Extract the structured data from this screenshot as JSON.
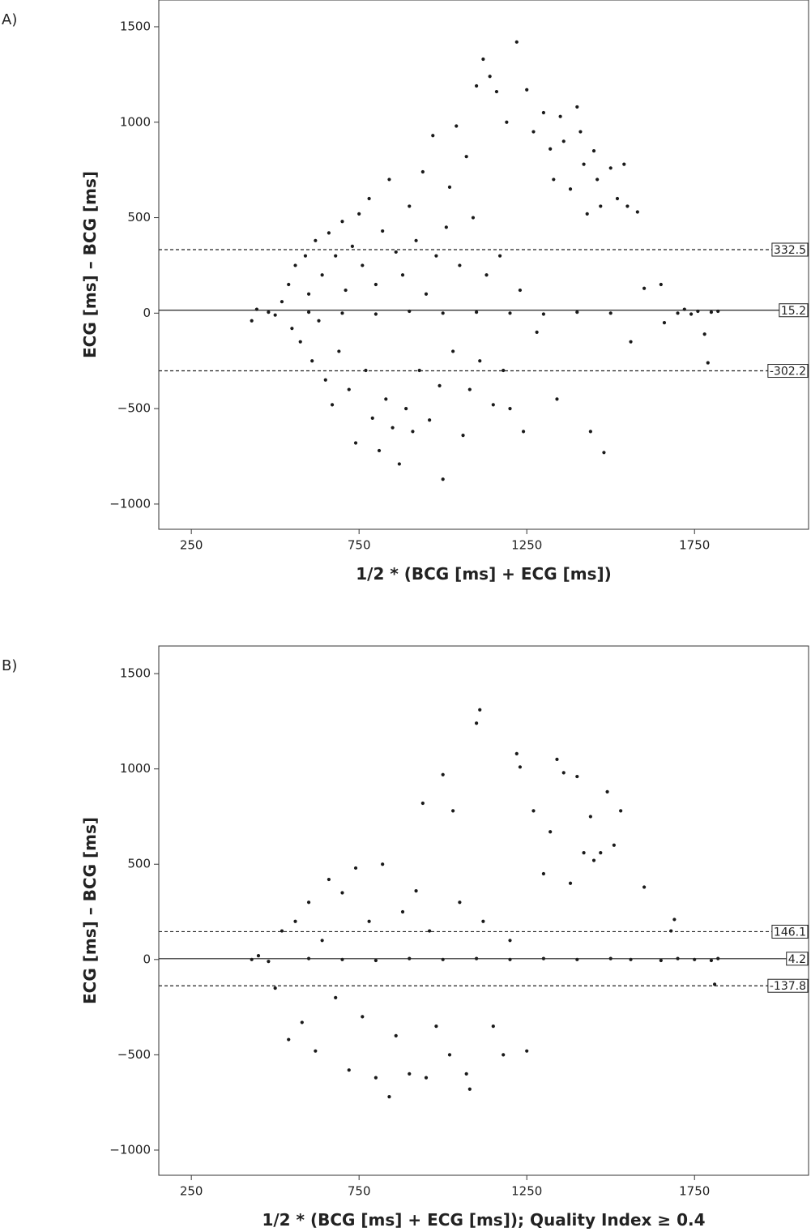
{
  "chart_data": [
    {
      "type": "scatter",
      "panel_label": "A)",
      "xlabel": "1/2 * (BCG [ms] + ECG [ms])",
      "ylabel": "ECG [ms] – BCG [ms]",
      "xlim": [
        153,
        2090
      ],
      "ylim": [
        -1132,
        1640
      ],
      "xticks": [
        250,
        750,
        1250,
        1750
      ],
      "yticks": [
        {
          "value": -1000,
          "label": "−1000"
        },
        {
          "value": -500,
          "label": "−500"
        },
        0,
        500,
        1000,
        1500
      ],
      "hlines": [
        {
          "value": 332.5,
          "style": "dashed"
        },
        {
          "value": 15.2,
          "style": "solid"
        },
        {
          "value": -302.2,
          "style": "dashed"
        }
      ],
      "color": "#1a1a1a",
      "x": [
        430,
        445,
        480,
        500,
        520,
        540,
        550,
        560,
        575,
        590,
        600,
        610,
        620,
        630,
        640,
        650,
        660,
        670,
        680,
        690,
        700,
        710,
        720,
        730,
        740,
        750,
        760,
        770,
        780,
        790,
        800,
        810,
        820,
        830,
        840,
        850,
        860,
        870,
        880,
        890,
        900,
        910,
        920,
        930,
        940,
        950,
        960,
        970,
        980,
        990,
        1000,
        1010,
        1020,
        1030,
        1040,
        1050,
        1060,
        1070,
        1080,
        1090,
        1100,
        1110,
        1120,
        1130,
        1140,
        1150,
        1160,
        1170,
        1180,
        1190,
        1200,
        1220,
        1230,
        1240,
        1250,
        1270,
        1280,
        1300,
        1320,
        1330,
        1340,
        1350,
        1360,
        1380,
        1400,
        1410,
        1420,
        1430,
        1440,
        1450,
        1460,
        1470,
        1480,
        1500,
        1520,
        1540,
        1550,
        1560,
        1580,
        1600,
        1650,
        1660,
        1700,
        1720,
        1740,
        1760,
        1780,
        1790,
        1800,
        1820,
        600,
        700,
        800,
        900,
        1000,
        1100,
        1200,
        1300,
        1400,
        1500
      ],
      "values": [
        -40,
        20,
        5,
        -10,
        60,
        150,
        -80,
        250,
        -150,
        300,
        100,
        -250,
        380,
        -40,
        200,
        -350,
        420,
        -480,
        300,
        -200,
        480,
        120,
        -400,
        350,
        -680,
        520,
        250,
        -300,
        600,
        -550,
        150,
        -720,
        430,
        -450,
        700,
        -600,
        320,
        -790,
        200,
        -500,
        560,
        -620,
        380,
        -300,
        740,
        100,
        -560,
        930,
        300,
        -380,
        -870,
        450,
        660,
        -200,
        980,
        250,
        -640,
        820,
        -400,
        500,
        1190,
        -250,
        1330,
        200,
        1240,
        -480,
        1160,
        300,
        -300,
        1000,
        -500,
        1420,
        120,
        -620,
        1170,
        950,
        -100,
        1050,
        860,
        700,
        -450,
        1030,
        900,
        650,
        1080,
        950,
        780,
        520,
        -620,
        850,
        700,
        560,
        -730,
        760,
        600,
        780,
        560,
        -150,
        530,
        130,
        150,
        -50,
        0,
        20,
        -5,
        10,
        -110,
        -260,
        5,
        10,
        5,
        0,
        -5,
        10,
        0,
        5,
        0,
        -5,
        5,
        0
      ]
    },
    {
      "type": "scatter",
      "panel_label": "B)",
      "xlabel": "1/2 * (BCG [ms] + ECG [ms]); Quality Index ≥ 0.4",
      "ylabel": "ECG [ms] – BCG [ms]",
      "xlim": [
        153,
        2090
      ],
      "ylim": [
        -1132,
        1645
      ],
      "xticks": [
        250,
        750,
        1250,
        1750
      ],
      "yticks": [
        {
          "value": -1000,
          "label": "−1000"
        },
        {
          "value": -500,
          "label": "−500"
        },
        0,
        500,
        1000,
        1500
      ],
      "hlines": [
        {
          "value": 146.1,
          "style": "dashed"
        },
        {
          "value": 4.2,
          "style": "solid"
        },
        {
          "value": -137.8,
          "style": "dashed"
        }
      ],
      "color": "#1a1a1a",
      "x": [
        430,
        450,
        480,
        500,
        520,
        540,
        560,
        580,
        600,
        620,
        640,
        660,
        680,
        700,
        720,
        740,
        760,
        780,
        800,
        820,
        840,
        860,
        880,
        900,
        920,
        940,
        950,
        960,
        980,
        1000,
        1020,
        1030,
        1050,
        1070,
        1080,
        1100,
        1110,
        1120,
        1150,
        1180,
        1200,
        1220,
        1230,
        1250,
        1270,
        1300,
        1320,
        1340,
        1360,
        1380,
        1400,
        1420,
        1440,
        1450,
        1470,
        1490,
        1510,
        1530,
        1560,
        1600,
        1650,
        1680,
        1690,
        1700,
        1750,
        1800,
        1810,
        1820,
        600,
        700,
        800,
        900,
        1000,
        1100,
        1200,
        1300,
        1400,
        1500
      ],
      "values": [
        0,
        20,
        -10,
        -150,
        150,
        -420,
        200,
        -330,
        300,
        -480,
        100,
        420,
        -200,
        350,
        -580,
        480,
        -300,
        200,
        -620,
        500,
        -720,
        -400,
        250,
        -600,
        360,
        820,
        -620,
        150,
        -350,
        970,
        -500,
        780,
        300,
        -600,
        -680,
        1240,
        1310,
        200,
        -350,
        -500,
        100,
        1080,
        1010,
        -480,
        780,
        450,
        670,
        1050,
        980,
        400,
        960,
        560,
        750,
        520,
        560,
        880,
        600,
        780,
        0,
        380,
        -5,
        150,
        210,
        5,
        0,
        -5,
        -130,
        5,
        5,
        0,
        -5,
        5,
        0,
        5,
        0,
        5,
        0,
        5
      ]
    }
  ]
}
